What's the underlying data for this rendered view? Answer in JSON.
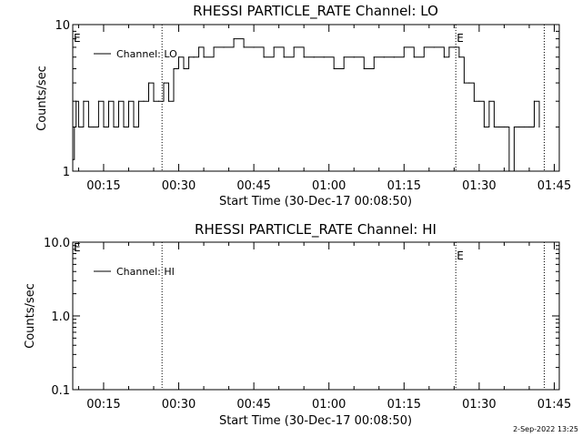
{
  "footer": {
    "timestamp": "2-Sep-2022 13:25"
  },
  "chart_data": [
    {
      "type": "line",
      "title": "RHESSI PARTICLE_RATE Channel: LO",
      "xlabel": "Start Time (30-Dec-17 00:08:50)",
      "ylabel": "Counts/sec",
      "yscale": "log",
      "ylim": [
        1,
        10
      ],
      "xlim": [
        "00:08:50",
        "01:46:00"
      ],
      "ytick_labels": [
        "1",
        "10"
      ],
      "xtick_labels": [
        "00:15",
        "00:30",
        "00:45",
        "01:00",
        "01:15",
        "01:30",
        "01:45"
      ],
      "legend": {
        "entries": [
          "Channel: LO"
        ],
        "placement": "top-left"
      },
      "event_markers": [
        {
          "time": "00:26:40",
          "label": ""
        },
        {
          "time": "01:25:20",
          "label": "E"
        },
        {
          "time": "01:43:00",
          "label": ""
        }
      ],
      "corner_label": "E",
      "series": [
        {
          "name": "Channel: LO",
          "x": [
            "00:08:50",
            "00:09:10",
            "00:09:30",
            "00:10:00",
            "00:11:00",
            "00:12:00",
            "00:13:00",
            "00:14:00",
            "00:15:00",
            "00:16:00",
            "00:17:00",
            "00:18:00",
            "00:19:00",
            "00:20:00",
            "00:21:00",
            "00:22:00",
            "00:23:00",
            "00:24:00",
            "00:25:00",
            "00:26:00",
            "00:27:00",
            "00:28:00",
            "00:29:00",
            "00:30:00",
            "00:31:00",
            "00:32:00",
            "00:33:00",
            "00:34:00",
            "00:35:00",
            "00:37:00",
            "00:39:00",
            "00:41:00",
            "00:43:00",
            "00:45:00",
            "00:47:00",
            "00:49:00",
            "00:51:00",
            "00:53:00",
            "00:55:00",
            "00:57:00",
            "00:59:00",
            "01:01:00",
            "01:03:00",
            "01:05:00",
            "01:07:00",
            "01:09:00",
            "01:11:00",
            "01:13:00",
            "01:15:00",
            "01:17:00",
            "01:19:00",
            "01:21:00",
            "01:23:00",
            "01:24:00",
            "01:25:00",
            "01:26:00",
            "01:27:00",
            "01:28:00",
            "01:29:00",
            "01:30:00",
            "01:31:00",
            "01:32:00",
            "01:33:00",
            "01:34:00",
            "01:35:00",
            "01:36:00",
            "01:37:00",
            "01:38:00",
            "01:39:00",
            "01:40:00",
            "01:41:00",
            "01:42:00"
          ],
          "y": [
            1.2,
            2,
            3,
            2,
            3,
            2,
            2,
            3,
            2,
            3,
            2,
            3,
            2,
            3,
            2,
            3,
            3,
            4,
            3,
            3,
            4,
            3,
            5,
            6,
            5,
            6,
            6,
            7,
            6,
            7,
            7,
            8,
            7,
            7,
            6,
            7,
            6,
            7,
            6,
            6,
            6,
            5,
            6,
            6,
            5,
            6,
            6,
            6,
            7,
            6,
            7,
            7,
            6,
            7,
            7,
            6,
            4,
            4,
            3,
            3,
            2,
            3,
            2,
            2,
            2,
            1,
            2,
            2,
            2,
            2,
            3,
            2
          ]
        }
      ]
    },
    {
      "type": "line",
      "title": "RHESSI PARTICLE_RATE Channel: HI",
      "xlabel": "Start Time (30-Dec-17 00:08:50)",
      "ylabel": "Counts/sec",
      "yscale": "log",
      "ylim": [
        0.1,
        10
      ],
      "xlim": [
        "00:08:50",
        "01:46:00"
      ],
      "ytick_labels": [
        "0.1",
        "1.0",
        "10.0"
      ],
      "xtick_labels": [
        "00:15",
        "00:30",
        "00:45",
        "01:00",
        "01:15",
        "01:30",
        "01:45"
      ],
      "legend": {
        "entries": [
          "Channel: HI"
        ],
        "placement": "top-left"
      },
      "event_markers": [
        {
          "time": "00:26:40",
          "label": ""
        },
        {
          "time": "01:25:20",
          "label": "E"
        },
        {
          "time": "01:43:00",
          "label": ""
        }
      ],
      "corner_label": "E",
      "series": [
        {
          "name": "Channel: HI",
          "x": [],
          "y": []
        }
      ]
    }
  ]
}
